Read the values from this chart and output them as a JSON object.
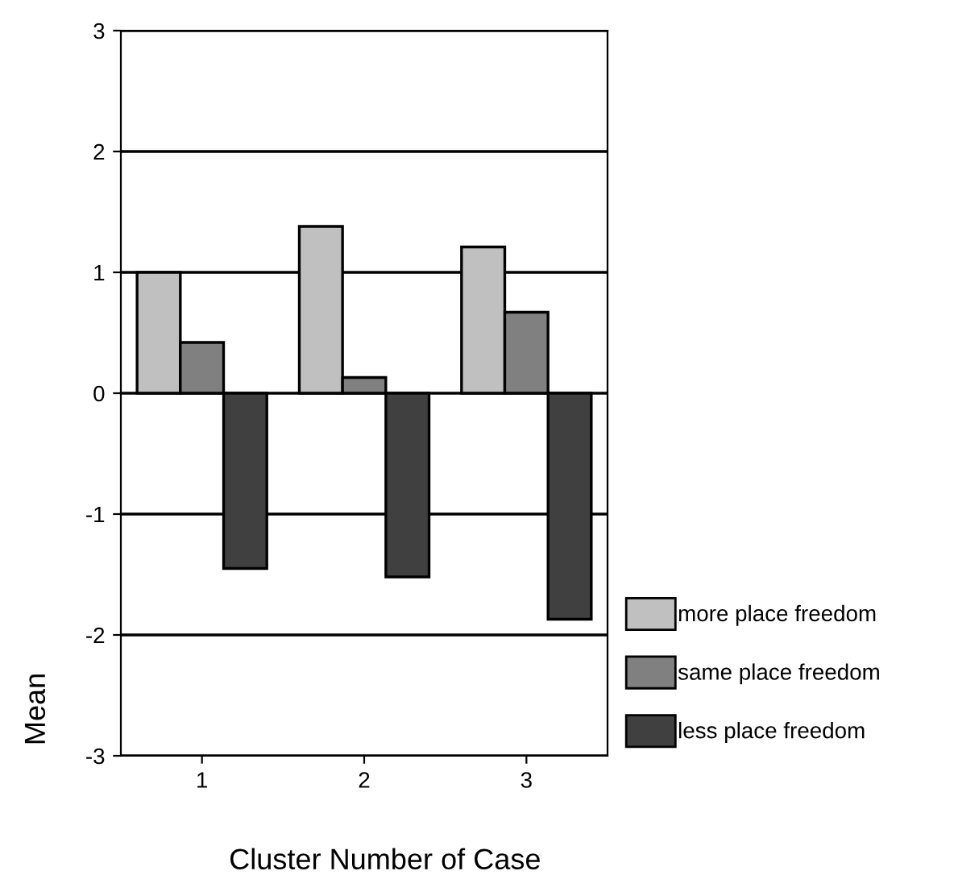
{
  "chart_data": {
    "type": "bar",
    "xlabel": "Cluster Number of Case",
    "ylabel": "Mean",
    "categories": [
      "1",
      "2",
      "3"
    ],
    "series": [
      {
        "name": "more place freedom",
        "color": "#c0c0c0",
        "values": [
          1.0,
          1.38,
          1.21
        ]
      },
      {
        "name": "same place freedom",
        "color": "#808080",
        "values": [
          0.42,
          0.13,
          0.67
        ]
      },
      {
        "name": "less place freedom",
        "color": "#404040",
        "values": [
          -1.45,
          -1.52,
          -1.87
        ]
      }
    ],
    "ylim": [
      -3,
      3
    ],
    "yticks": [
      -3,
      -2,
      -1,
      0,
      1,
      2,
      3
    ],
    "grid": "y",
    "legend": "right"
  }
}
